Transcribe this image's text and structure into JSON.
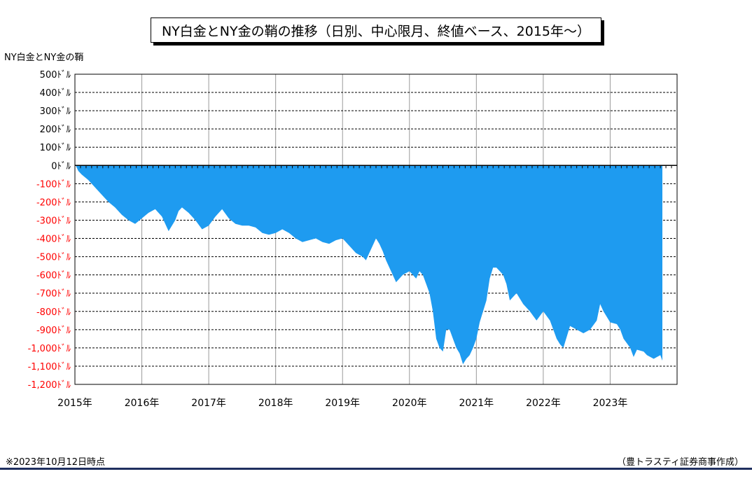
{
  "chart_data": {
    "type": "area",
    "title": "NY白金とNY金の鞘の推移（日別、中心限月、終値ベース、2015年～）",
    "ylabel": "NY白金とNY金の鞘",
    "xlabel": "",
    "ylim": [
      -1200,
      500
    ],
    "xlim": [
      2015.0,
      2024.0
    ],
    "y_ticks": [
      500,
      400,
      300,
      200,
      100,
      0,
      -100,
      -200,
      -300,
      -400,
      -500,
      -600,
      -700,
      -800,
      -900,
      -1000,
      -1100,
      -1200
    ],
    "y_tick_labels": [
      "500ﾄﾞﾙ",
      "400ﾄﾞﾙ",
      "300ﾄﾞﾙ",
      "200ﾄﾞﾙ",
      "100ﾄﾞﾙ",
      "0ﾄﾞﾙ",
      "-100ﾄﾞﾙ",
      "-200ﾄﾞﾙ",
      "-300ﾄﾞﾙ",
      "-400ﾄﾞﾙ",
      "-500ﾄﾞﾙ",
      "-600ﾄﾞﾙ",
      "-700ﾄﾞﾙ",
      "-800ﾄﾞﾙ",
      "-900ﾄﾞﾙ",
      "-1,000ﾄﾞﾙ",
      "-1,100ﾄﾞﾙ",
      "-1,200ﾄﾞﾙ"
    ],
    "x_ticks": [
      2015,
      2016,
      2017,
      2018,
      2019,
      2020,
      2021,
      2022,
      2023
    ],
    "x_tick_labels": [
      "2015年",
      "2016年",
      "2017年",
      "2018年",
      "2019年",
      "2020年",
      "2021年",
      "2022年",
      "2023年"
    ],
    "grid": "dashed horizontal, solid vertical",
    "colors": {
      "area": "#1e9bf0",
      "negative_tick": "#ff0000",
      "positive_tick": "#000000"
    },
    "series": [
      {
        "x": [
          2015.0,
          2015.05,
          2015.1,
          2015.2,
          2015.3,
          2015.4,
          2015.5,
          2015.6,
          2015.7,
          2015.8,
          2015.9,
          2016.0,
          2016.1,
          2016.2,
          2016.3,
          2016.4,
          2016.5,
          2016.55,
          2016.6,
          2016.7,
          2016.8,
          2016.9,
          2017.0,
          2017.1,
          2017.2,
          2017.3,
          2017.4,
          2017.5,
          2017.6,
          2017.7,
          2017.8,
          2017.9,
          2018.0,
          2018.1,
          2018.2,
          2018.3,
          2018.4,
          2018.5,
          2018.6,
          2018.7,
          2018.8,
          2018.9,
          2019.0,
          2019.1,
          2019.2,
          2019.3,
          2019.35,
          2019.4,
          2019.45,
          2019.5,
          2019.55,
          2019.6,
          2019.65,
          2019.7,
          2019.8,
          2019.9,
          2020.0,
          2020.05,
          2020.1,
          2020.15,
          2020.2,
          2020.25,
          2020.3,
          2020.35,
          2020.4,
          2020.45,
          2020.5,
          2020.55,
          2020.6,
          2020.65,
          2020.7,
          2020.75,
          2020.8,
          2020.85,
          2020.9,
          2020.95,
          2021.0,
          2021.05,
          2021.1,
          2021.15,
          2021.2,
          2021.25,
          2021.3,
          2021.35,
          2021.4,
          2021.45,
          2021.5,
          2021.6,
          2021.7,
          2021.8,
          2021.9,
          2022.0,
          2022.1,
          2022.15,
          2022.2,
          2022.25,
          2022.3,
          2022.4,
          2022.5,
          2022.6,
          2022.7,
          2022.8,
          2022.85,
          2022.9,
          2023.0,
          2023.1,
          2023.15,
          2023.2,
          2023.3,
          2023.35,
          2023.4,
          2023.5,
          2023.55,
          2023.6,
          2023.65,
          2023.7,
          2023.75,
          2023.77,
          2023.78
        ],
        "values": [
          10,
          -30,
          -50,
          -80,
          -120,
          -160,
          -200,
          -230,
          -270,
          -300,
          -320,
          -290,
          -260,
          -240,
          -280,
          -360,
          -300,
          -250,
          -230,
          -260,
          -300,
          -350,
          -330,
          -280,
          -240,
          -290,
          -320,
          -330,
          -330,
          -340,
          -370,
          -380,
          -370,
          -350,
          -370,
          -400,
          -420,
          -410,
          -400,
          -420,
          -430,
          -410,
          -400,
          -440,
          -480,
          -500,
          -520,
          -480,
          -440,
          -400,
          -430,
          -470,
          -520,
          -560,
          -640,
          -600,
          -580,
          -600,
          -620,
          -580,
          -600,
          -650,
          -700,
          -800,
          -950,
          -1000,
          -1020,
          -900,
          -900,
          -950,
          -1000,
          -1030,
          -1090,
          -1060,
          -1040,
          -1000,
          -950,
          -860,
          -800,
          -740,
          -620,
          -560,
          -560,
          -580,
          -600,
          -650,
          -740,
          -700,
          -760,
          -800,
          -850,
          -800,
          -850,
          -900,
          -950,
          -980,
          -1000,
          -880,
          -900,
          -920,
          -900,
          -850,
          -760,
          -800,
          -860,
          -870,
          -900,
          -950,
          -1000,
          -1050,
          -1010,
          -1020,
          -1040,
          -1050,
          -1060,
          -1050,
          -1040,
          -1060,
          -1070
        ]
      }
    ]
  },
  "note": "※2023年10月12日時点",
  "source": "（豊トラスティ証券商事作成）"
}
